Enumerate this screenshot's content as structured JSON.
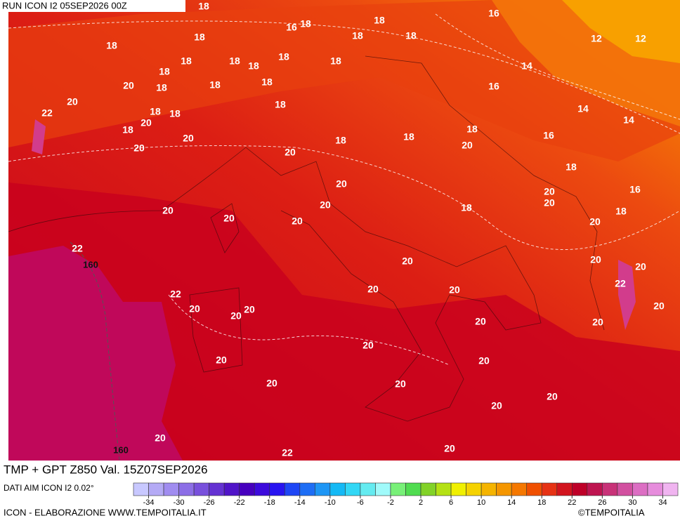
{
  "header": {
    "run": "RUN ICON I2 05SEP2026 00Z"
  },
  "map": {
    "temperature_labels": [
      18,
      16,
      16,
      18,
      18,
      12,
      12,
      18,
      18,
      18,
      18,
      18,
      18,
      18,
      18,
      18,
      14,
      18,
      20,
      18,
      18,
      18,
      16,
      20,
      18,
      14,
      18,
      18,
      20,
      14,
      22,
      18,
      18,
      16,
      20,
      18,
      18,
      20,
      20,
      20,
      18,
      20,
      16,
      20,
      20,
      20,
      18,
      18,
      20,
      20,
      20,
      20,
      22,
      20,
      20,
      20,
      22,
      20,
      20,
      22,
      20,
      20,
      20,
      20,
      20,
      20,
      20,
      20,
      20,
      20,
      20,
      20,
      20,
      20,
      22,
      20
    ],
    "height_labels": [
      160,
      160
    ]
  },
  "footer": {
    "field": "TMP + GPT Z850 Val. 15Z07SEP2026",
    "source": "DATI AIM ICON I2 0.02°",
    "credit": "ICON - ELABORAZIONE WWW.TEMPOITALIA.IT",
    "copyright": "©TEMPOITALIA"
  },
  "colorbar": {
    "range": [
      -36,
      36
    ],
    "ticks": [
      -34,
      -30,
      -26,
      -22,
      -18,
      -14,
      -10,
      -6,
      -2,
      2,
      6,
      10,
      14,
      18,
      22,
      26,
      30,
      34
    ],
    "colors": [
      "#c8c8ff",
      "#b4aaf5",
      "#a08cf0",
      "#8c6ee6",
      "#7850dc",
      "#6432d2",
      "#5014c8",
      "#4600be",
      "#3c0adc",
      "#2814f0",
      "#1e46f5",
      "#1e6ef5",
      "#1e96f5",
      "#14b9f5",
      "#32d7f5",
      "#64ebf0",
      "#a0fafa",
      "#78f078",
      "#50dc50",
      "#82d228",
      "#b4e114",
      "#f0f000",
      "#f5d200",
      "#f5b400",
      "#f59600",
      "#f57800",
      "#f05000",
      "#e63214",
      "#d2141e",
      "#be0028",
      "#be1450",
      "#c83278",
      "#d250a0",
      "#dc6ec3",
      "#e68cdc",
      "#f0b4f0"
    ]
  }
}
